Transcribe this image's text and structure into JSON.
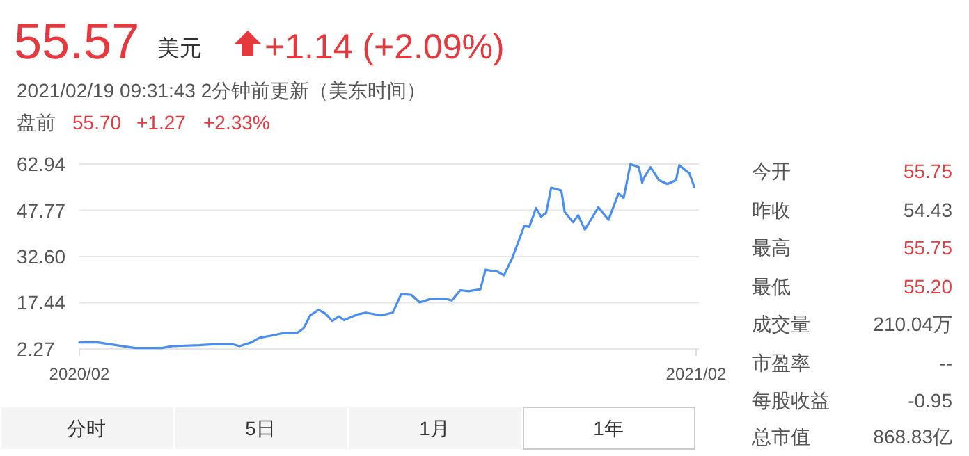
{
  "chart_data": {
    "type": "line",
    "title": "55.57",
    "annotations": [
      "美元",
      "+1.14 (+2.09%)",
      "2021/02/19 09:31:43 2分钟前更新（美东时间）",
      "盘前",
      "55.70",
      "+1.27",
      "+2.33%",
      "今开",
      "55.75",
      "昨收",
      "54.43",
      "最高",
      "55.75",
      "最低",
      "55.20",
      "成交量",
      "210.04万",
      "市盈率",
      "--",
      "每股收益",
      "-0.95",
      "总市值",
      "868.83亿",
      "分时",
      "5日",
      "1月",
      "1年"
    ],
    "x": [
      "2020-02-19",
      "2020-03-01",
      "2020-03-12",
      "2020-03-23",
      "2020-04-08",
      "2020-04-14",
      "2020-04-30",
      "2020-05-08",
      "2020-05-20",
      "2020-05-24",
      "2020-05-31",
      "2020-06-05",
      "2020-06-11",
      "2020-06-19",
      "2020-06-27",
      "2020-07-01",
      "2020-07-05",
      "2020-07-10",
      "2020-07-14",
      "2020-07-18",
      "2020-07-22",
      "2020-07-25",
      "2020-08-02",
      "2020-08-07",
      "2020-08-16",
      "2020-08-23",
      "2020-08-28",
      "2020-09-03",
      "2020-09-08",
      "2020-09-15",
      "2020-09-23",
      "2020-09-27",
      "2020-10-02",
      "2020-10-07",
      "2020-10-14",
      "2020-10-17",
      "2020-10-24",
      "2020-10-28",
      "2020-11-02",
      "2020-11-09",
      "2020-11-12",
      "2020-11-16",
      "2020-11-19",
      "2020-11-22",
      "2020-11-25",
      "2020-12-01",
      "2020-12-03",
      "2020-12-08",
      "2020-12-11",
      "2020-12-15",
      "2020-12-23",
      "2020-12-29",
      "2021-01-04",
      "2021-01-07",
      "2021-01-11",
      "2021-01-16",
      "2021-01-18",
      "2021-01-19",
      "2021-01-23",
      "2021-01-28",
      "2021-02-02",
      "2021-02-07",
      "2021-02-09",
      "2021-02-15",
      "2021-02-18"
    ],
    "series": [
      {
        "color": "#4a8ef0",
        "values": [
          4.41,
          4.41,
          3.49,
          2.58,
          2.58,
          3.19,
          3.49,
          3.8,
          3.8,
          3.19,
          4.41,
          5.94,
          6.55,
          7.47,
          7.47,
          8.99,
          13.28,
          15.11,
          13.89,
          11.44,
          12.97,
          11.75,
          13.58,
          14.2,
          13.28,
          14.2,
          20.31,
          20.0,
          17.56,
          18.78,
          18.78,
          18.17,
          21.54,
          21.23,
          21.84,
          28.26,
          27.65,
          26.43,
          32.24,
          42.64,
          42.33,
          48.45,
          45.69,
          46.92,
          55.17,
          54.25,
          47.22,
          43.86,
          46.15,
          41.41,
          48.75,
          44.62,
          53.34,
          51.81,
          62.9,
          61.9,
          56.86,
          58.39,
          61.9,
          57.62,
          56.4,
          57.62,
          62.51,
          59.91,
          55.33
        ]
      }
    ],
    "xlim": [
      "2020-02-19",
      "2021-02-19"
    ],
    "xticks": [
      {
        "value": "2020-02-19",
        "label": "2020/02"
      },
      {
        "value": "2021-02-19",
        "label": "2021/02"
      }
    ],
    "ylim": [
      2.27,
      62.94
    ],
    "yticks": [
      {
        "value": 2.27,
        "label": "2.27"
      },
      {
        "value": 17.44,
        "label": "17.44"
      },
      {
        "value": 32.6,
        "label": "32.60"
      },
      {
        "value": 47.77,
        "label": "47.77"
      },
      {
        "value": 62.94,
        "label": "62.94"
      }
    ],
    "grid": "y"
  }
}
